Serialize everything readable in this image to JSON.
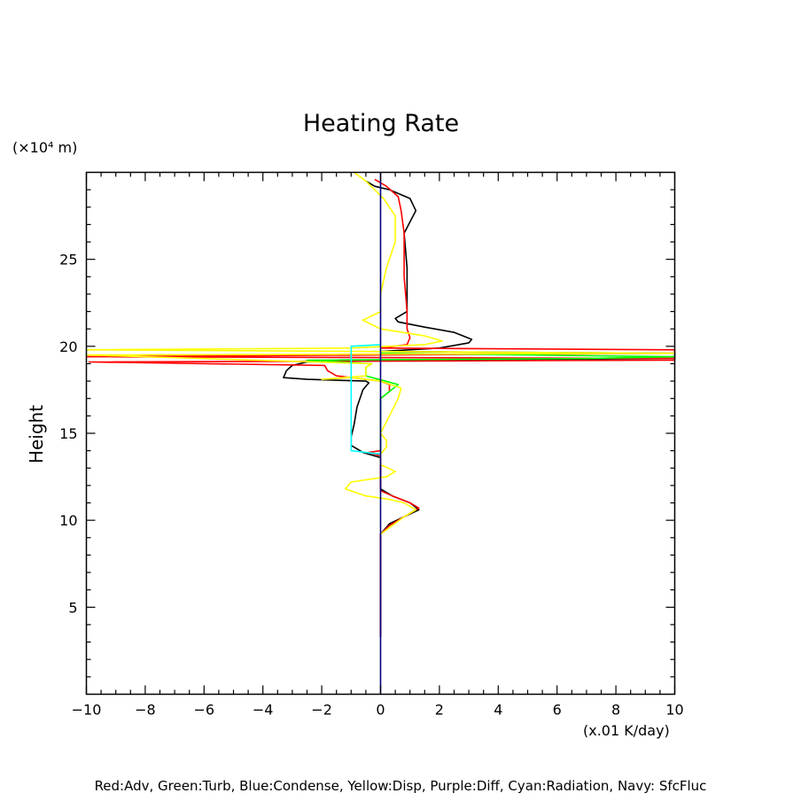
{
  "chart_data": {
    "type": "line",
    "title": "Heating Rate",
    "ylabel": "Height",
    "y_units": "(×10⁴ m)",
    "x_units": "(x.01 K/day)",
    "legend": "Red:Adv, Green:Turb, Blue:Condense, Yellow:Disp, Purple:Diff, Cyan:Radiation, Navy: SfcFluc",
    "xlim": [
      -10,
      10
    ],
    "ylim": [
      0,
      30
    ],
    "x_ticks": [
      "−10",
      "−8",
      "−6",
      "−4",
      "−2",
      "0",
      "2",
      "4",
      "6",
      "8",
      "10"
    ],
    "y_ticks": [
      "5",
      "10",
      "15",
      "20",
      "25"
    ],
    "grid": false,
    "series": [
      {
        "color": "#000000",
        "points": [
          [
            0,
            3.3
          ],
          [
            0,
            8.5
          ],
          [
            0,
            9.2
          ],
          [
            0.3,
            9.8
          ],
          [
            0.8,
            10.2
          ],
          [
            1.3,
            10.6
          ],
          [
            1.0,
            11.0
          ],
          [
            0.4,
            11.4
          ],
          [
            0,
            11.8
          ],
          [
            0,
            13.6
          ],
          [
            -0.6,
            13.9
          ],
          [
            -1.0,
            14.3
          ],
          [
            -1.0,
            14.8
          ],
          [
            -0.9,
            15.5
          ],
          [
            -0.8,
            16.5
          ],
          [
            -0.6,
            17.5
          ],
          [
            -0.4,
            17.9
          ],
          [
            -0.5,
            18.0
          ],
          [
            -2.5,
            18.1
          ],
          [
            -3.3,
            18.2
          ],
          [
            -3.2,
            18.6
          ],
          [
            -3.0,
            18.9
          ],
          [
            -2.5,
            19.1
          ],
          [
            0,
            19.2
          ],
          [
            10,
            19.3
          ],
          [
            10,
            19.6
          ],
          [
            0,
            19.7
          ],
          [
            2.0,
            19.9
          ],
          [
            3.0,
            20.2
          ],
          [
            3.1,
            20.4
          ],
          [
            2.5,
            20.8
          ],
          [
            1.5,
            21.1
          ],
          [
            0.6,
            21.4
          ],
          [
            0.5,
            21.6
          ],
          [
            0.9,
            22.0
          ],
          [
            0.9,
            24.5
          ],
          [
            0.8,
            26.5
          ],
          [
            1.2,
            27.8
          ],
          [
            1.0,
            28.5
          ],
          [
            0.3,
            29.0
          ],
          [
            -0.2,
            29.2
          ],
          [
            -0.5,
            29.5
          ]
        ]
      },
      {
        "color": "#ff0000",
        "points": [
          [
            0,
            3.3
          ],
          [
            0,
            8.8
          ],
          [
            0,
            9.2
          ],
          [
            0.3,
            9.7
          ],
          [
            0.9,
            10.3
          ],
          [
            1.3,
            10.7
          ],
          [
            1.0,
            11.0
          ],
          [
            0.4,
            11.4
          ],
          [
            0,
            11.7
          ],
          [
            0,
            13.7
          ],
          [
            -0.4,
            13.9
          ],
          [
            0,
            14.0
          ],
          [
            0,
            17.0
          ],
          [
            0.3,
            17.4
          ],
          [
            0.3,
            17.8
          ],
          [
            0,
            18.0
          ],
          [
            -1.5,
            18.3
          ],
          [
            -1.8,
            18.6
          ],
          [
            -1.9,
            18.9
          ],
          [
            -9.9,
            19.1
          ],
          [
            10,
            19.2
          ],
          [
            10,
            19.3
          ],
          [
            -10,
            19.4
          ],
          [
            0,
            19.5
          ],
          [
            10,
            19.6
          ],
          [
            10,
            19.8
          ],
          [
            0,
            19.9
          ],
          [
            0.9,
            20.1
          ],
          [
            1.0,
            20.5
          ],
          [
            0.9,
            21.0
          ],
          [
            0.9,
            22.0
          ],
          [
            0.8,
            24.0
          ],
          [
            0.8,
            26.5
          ],
          [
            0.7,
            27.8
          ],
          [
            0.6,
            28.6
          ],
          [
            0.2,
            29.2
          ],
          [
            -0.2,
            29.6
          ]
        ]
      },
      {
        "color": "#00ff00",
        "points": [
          [
            0,
            13.8
          ],
          [
            0,
            14.6
          ],
          [
            0,
            17.0
          ],
          [
            0.6,
            17.8
          ],
          [
            -0.5,
            18.3
          ],
          [
            -0.5,
            18.8
          ],
          [
            -0.3,
            19.0
          ],
          [
            -2.5,
            19.2
          ],
          [
            7,
            19.3
          ],
          [
            10,
            19.4
          ],
          [
            0,
            19.6
          ],
          [
            0,
            19.8
          ]
        ]
      },
      {
        "color": "#ffff00",
        "points": [
          [
            0,
            9.2
          ],
          [
            0.8,
            10.2
          ],
          [
            1.2,
            10.6
          ],
          [
            0.8,
            11.0
          ],
          [
            0.3,
            11.2
          ],
          [
            -0.5,
            11.4
          ],
          [
            -1.2,
            11.8
          ],
          [
            -1.0,
            12.2
          ],
          [
            0.2,
            12.5
          ],
          [
            0.5,
            12.8
          ],
          [
            0,
            13.2
          ],
          [
            0,
            13.8
          ],
          [
            0.2,
            14.2
          ],
          [
            0.2,
            14.6
          ],
          [
            0,
            15.0
          ],
          [
            0.3,
            16.0
          ],
          [
            0.6,
            17.0
          ],
          [
            0.7,
            17.6
          ],
          [
            0,
            18.0
          ],
          [
            -1.0,
            18.2
          ],
          [
            -2.0,
            18.1
          ],
          [
            -0.5,
            18.3
          ],
          [
            -0.5,
            18.8
          ],
          [
            -0.3,
            19.0
          ],
          [
            -10,
            19.5
          ],
          [
            10,
            19.6
          ],
          [
            -10,
            19.8
          ],
          [
            -1.0,
            19.9
          ],
          [
            1.5,
            20.1
          ],
          [
            2.1,
            20.3
          ],
          [
            1.5,
            20.6
          ],
          [
            0,
            21.0
          ],
          [
            -0.6,
            21.5
          ],
          [
            0,
            22.0
          ],
          [
            0,
            23.0
          ],
          [
            0.2,
            24.5
          ],
          [
            0.5,
            26.0
          ],
          [
            0.5,
            27.5
          ],
          [
            0.1,
            28.5
          ],
          [
            -0.5,
            29.5
          ],
          [
            -0.9,
            30.0
          ]
        ]
      },
      {
        "color": "#00ffff",
        "points": [
          [
            0,
            13.8
          ],
          [
            -1.0,
            14.0
          ],
          [
            -1.0,
            17.0
          ],
          [
            -1.0,
            19.0
          ],
          [
            -1.0,
            20.0
          ],
          [
            0,
            20.1
          ]
        ]
      },
      {
        "color": "#000080",
        "points": [
          [
            0,
            0
          ],
          [
            0,
            30
          ]
        ]
      }
    ]
  }
}
